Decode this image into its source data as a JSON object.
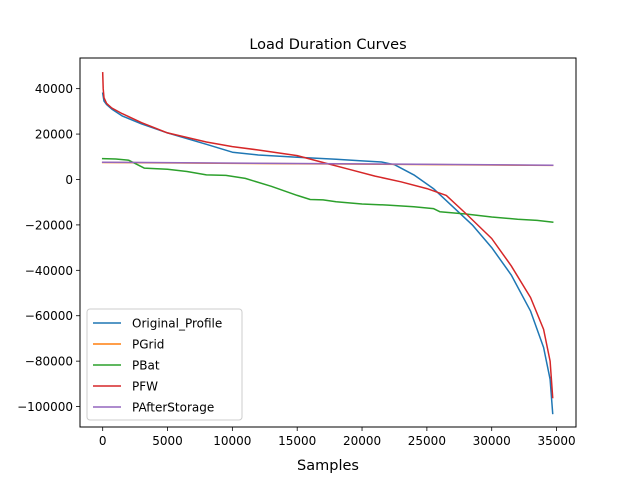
{
  "chart_data": {
    "type": "line",
    "title": "Load Duration Curves",
    "xlabel": "Samples",
    "ylabel": "",
    "xlim": [
      -1750,
      36500
    ],
    "ylim": [
      -109000,
      53500
    ],
    "xticks": [
      0,
      5000,
      10000,
      15000,
      20000,
      25000,
      30000,
      35000
    ],
    "yticks": [
      40000,
      20000,
      0,
      -20000,
      -40000,
      -60000,
      -80000,
      -100000
    ],
    "grid": false,
    "legend_position": "lower-left",
    "series": [
      {
        "name": "Original_Profile",
        "color": "#1f77b4",
        "x": [
          0,
          100,
          300,
          700,
          1500,
          3000,
          5000,
          8000,
          10000,
          12000,
          15000,
          18000,
          20000,
          21500,
          22500,
          24000,
          25500,
          27000,
          28500,
          30000,
          31500,
          33000,
          34000,
          34500,
          34700
        ],
        "y": [
          38000,
          34500,
          33000,
          31000,
          28000,
          24500,
          20500,
          15500,
          12000,
          10800,
          9800,
          8900,
          8200,
          7700,
          6500,
          2000,
          -4000,
          -12000,
          -20000,
          -30000,
          -42000,
          -58000,
          -74000,
          -88000,
          -103000
        ]
      },
      {
        "name": "PGrid",
        "color": "#ff7f0e",
        "x": [
          0,
          34700
        ],
        "y": [
          7500,
          6200
        ]
      },
      {
        "name": "PBat",
        "color": "#2ca02c",
        "x": [
          0,
          1000,
          2000,
          3200,
          5000,
          6500,
          8000,
          9500,
          11000,
          13000,
          15000,
          16000,
          17000,
          18000,
          20000,
          22000,
          24000,
          25500,
          26000,
          28000,
          30000,
          32000,
          33500,
          34700
        ],
        "y": [
          9200,
          9000,
          8500,
          5000,
          4500,
          3500,
          2000,
          1800,
          500,
          -3000,
          -7000,
          -8800,
          -9000,
          -9800,
          -10800,
          -11300,
          -12000,
          -12800,
          -14200,
          -15200,
          -16500,
          -17500,
          -18000,
          -18800
        ]
      },
      {
        "name": "PFW",
        "color": "#d62728",
        "x": [
          0,
          40,
          100,
          300,
          700,
          1500,
          3000,
          5000,
          8000,
          10000,
          12000,
          15000,
          17000,
          19000,
          21000,
          23000,
          25000,
          26500,
          28000,
          30000,
          31500,
          33000,
          34000,
          34500,
          34700
        ],
        "y": [
          47000,
          40000,
          36000,
          33500,
          31500,
          29000,
          25000,
          20500,
          16500,
          14500,
          13000,
          10500,
          7500,
          4500,
          1500,
          -1000,
          -4000,
          -7000,
          -15000,
          -26000,
          -38000,
          -52000,
          -66000,
          -80000,
          -96000
        ]
      },
      {
        "name": "PAfterStorage",
        "color": "#9467bd",
        "x": [
          0,
          34700
        ],
        "y": [
          7600,
          6300
        ]
      }
    ]
  }
}
